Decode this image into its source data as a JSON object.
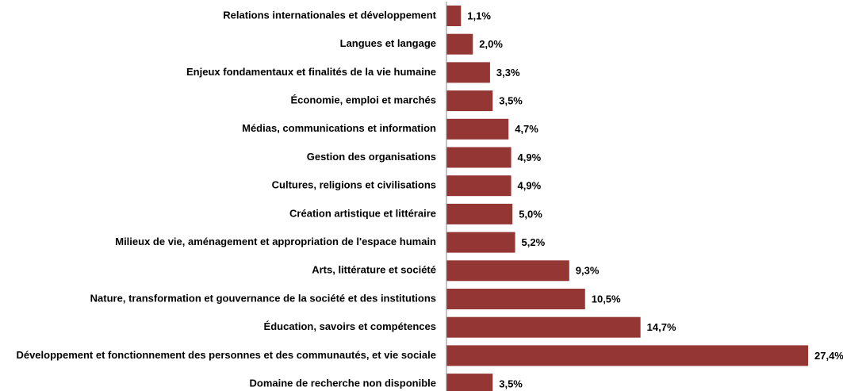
{
  "chart_data": {
    "type": "bar",
    "orientation": "horizontal",
    "color": "#943634",
    "categories": [
      "Relations internationales et développement",
      "Langues et langage",
      "Enjeux fondamentaux et finalités de la vie humaine",
      "Économie, emploi et marchés",
      "Médias, communications et information",
      "Gestion des organisations",
      "Cultures, religions et civilisations",
      "Création artistique et littéraire",
      "Milieux de vie, aménagement et appropriation de l'espace humain",
      "Arts, littérature et société",
      "Nature, transformation et gouvernance de la société et des institutions",
      "Éducation, savoirs et compétences",
      "Développement et fonctionnement des personnes et des communautés, et vie sociale",
      "Domaine de recherche non disponible"
    ],
    "values": [
      1.1,
      2.0,
      3.3,
      3.5,
      4.7,
      4.9,
      4.9,
      5.0,
      5.2,
      9.3,
      10.5,
      14.7,
      27.4,
      3.5
    ],
    "value_labels": [
      "1,1%",
      "2,0%",
      "3,3%",
      "3,5%",
      "4,7%",
      "4,9%",
      "4,9%",
      "5,0%",
      "5,2%",
      "9,3%",
      "10,5%",
      "14,7%",
      "27,4%",
      "3,5%"
    ]
  }
}
